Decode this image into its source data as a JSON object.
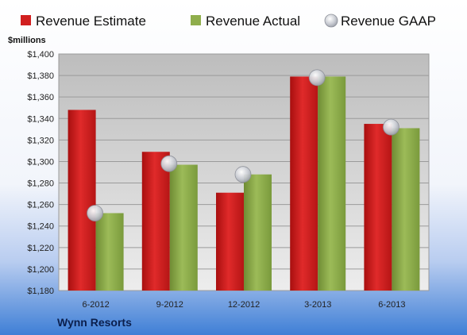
{
  "chart_data": {
    "type": "bar",
    "unit_label": "$millions",
    "company": "Wynn Resorts",
    "categories": [
      "6-2012",
      "9-2012",
      "12-2012",
      "3-2013",
      "6-2013"
    ],
    "series": [
      {
        "name": "Revenue Estimate",
        "kind": "bar",
        "color": "#d11f1f",
        "values": [
          1348,
          1309,
          1271,
          1379,
          1335
        ]
      },
      {
        "name": "Revenue Actual",
        "kind": "bar",
        "color": "#8fae4c",
        "values": [
          1252,
          1297,
          1288,
          1379,
          1331
        ]
      },
      {
        "name": "Revenue GAAP",
        "kind": "marker",
        "color": "#c4c8d0",
        "values": [
          1252,
          1298,
          1288,
          1378,
          1332
        ]
      }
    ],
    "ylim": [
      1180,
      1400
    ],
    "yticks": [
      "$1,180",
      "$1,200",
      "$1,220",
      "$1,240",
      "$1,260",
      "$1,280",
      "$1,300",
      "$1,320",
      "$1,340",
      "$1,360",
      "$1,380",
      "$1,400"
    ],
    "ytick_values": [
      1180,
      1200,
      1220,
      1240,
      1260,
      1280,
      1300,
      1320,
      1340,
      1360,
      1380,
      1400
    ],
    "grid": true,
    "legend_position": "top"
  }
}
